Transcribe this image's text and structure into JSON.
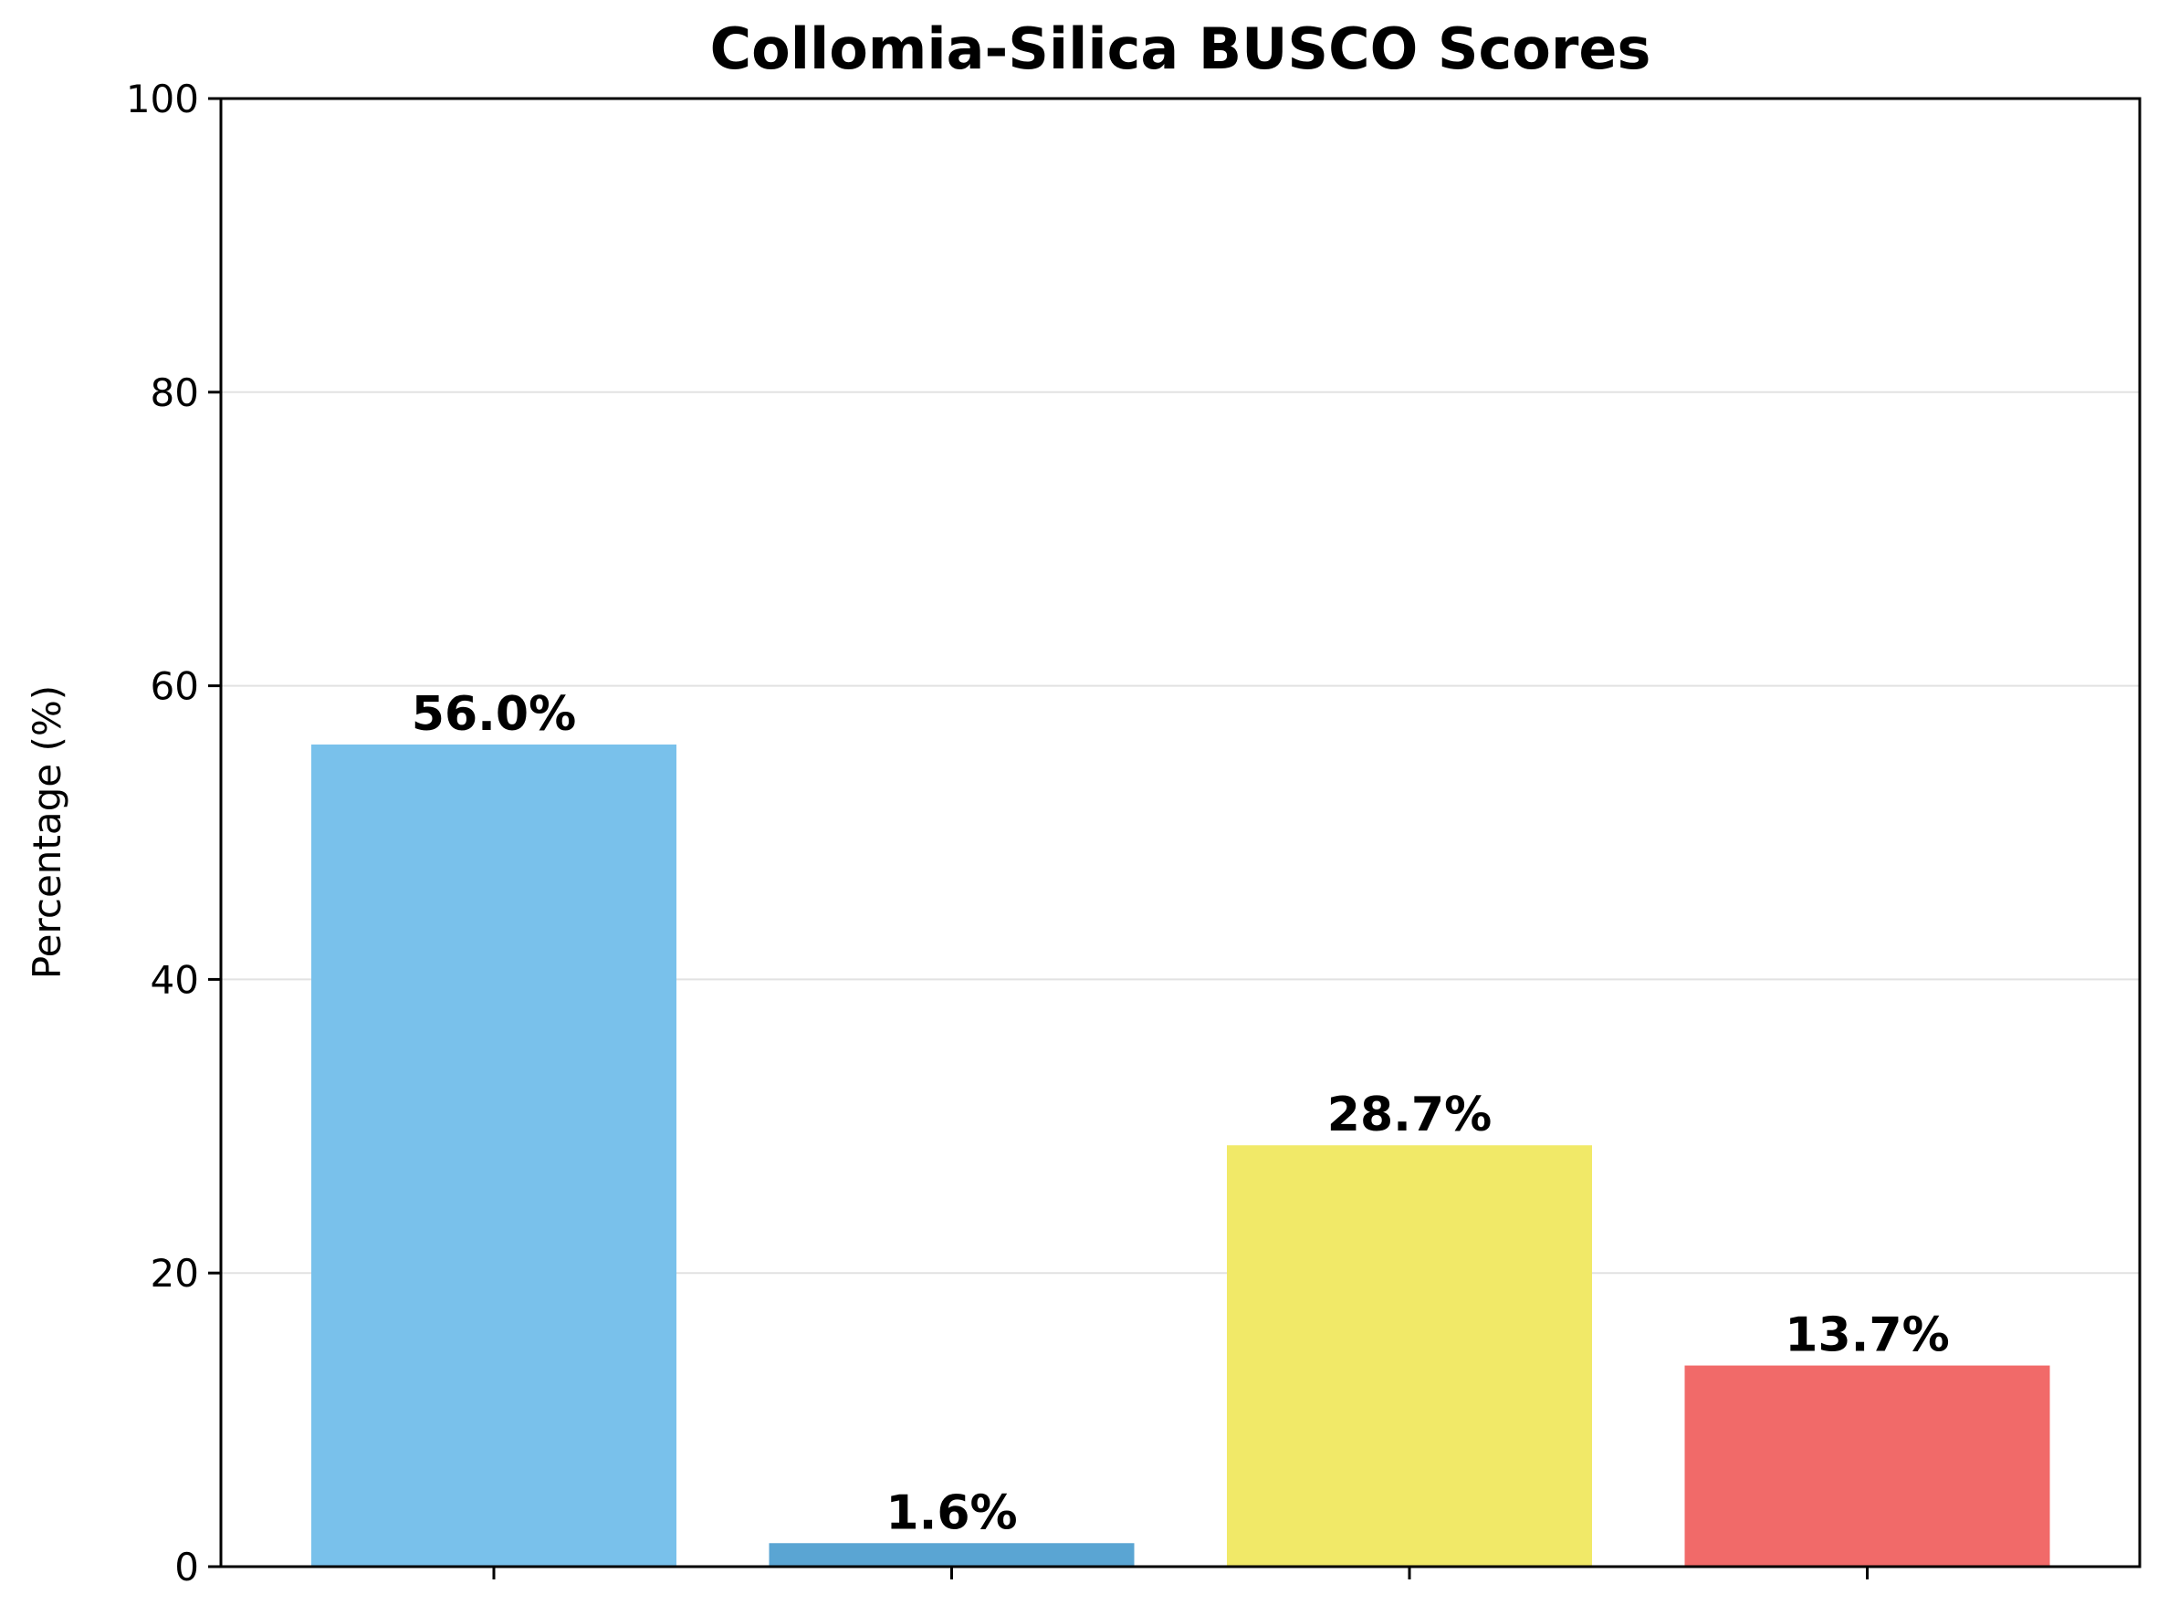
{
  "chart_data": {
    "type": "bar",
    "title": "Collomia-Silica BUSCO Scores",
    "xlabel": "",
    "ylabel": "Percentage (%)",
    "categories": [
      "",
      "",
      "",
      ""
    ],
    "values": [
      56.0,
      1.6,
      28.7,
      13.7
    ],
    "value_labels": [
      "56.0%",
      "1.6%",
      "28.7%",
      "13.7%"
    ],
    "colors": [
      "#79c1eb",
      "#5aa5d3",
      "#f1e968",
      "#f16a69"
    ],
    "ylim": [
      0,
      100
    ],
    "yticks": [
      0,
      20,
      40,
      60,
      80,
      100
    ],
    "ytick_labels": [
      "0",
      "20",
      "40",
      "60",
      "80",
      "100"
    ],
    "grid": "y-major",
    "grid_color": "#e2e2e2",
    "legend": "none"
  }
}
